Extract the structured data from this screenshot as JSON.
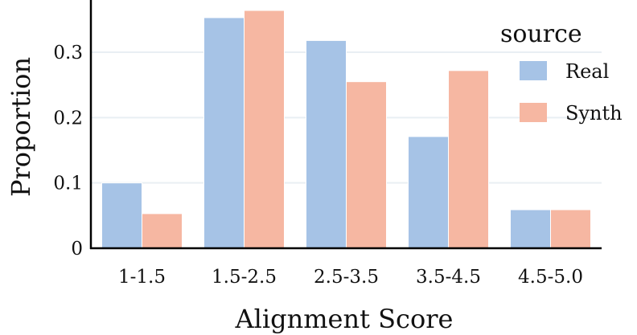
{
  "chart_data": {
    "type": "bar",
    "xlabel": "Alignment Score",
    "ylabel": "Proportion",
    "categories": [
      "1-1.5",
      "1.5-2.5",
      "2.5-3.5",
      "3.5-4.5",
      "4.5-5.0"
    ],
    "series": [
      {
        "name": "Real",
        "color": "#a6c3e6",
        "values": [
          0.1,
          0.353,
          0.318,
          0.171,
          0.059
        ]
      },
      {
        "name": "Synth",
        "color": "#f6b7a2",
        "values": [
          0.053,
          0.364,
          0.255,
          0.272,
          0.059
        ]
      }
    ],
    "ylim": [
      0,
      0.38
    ],
    "yticks": [
      0,
      0.1,
      0.2,
      0.3
    ],
    "ytick_labels": [
      "0",
      "0.1",
      "0.2",
      "0.3"
    ],
    "grid": "horizontal",
    "grid_color": "#e9eff3",
    "legend": {
      "title": "source",
      "placement": "right"
    }
  }
}
